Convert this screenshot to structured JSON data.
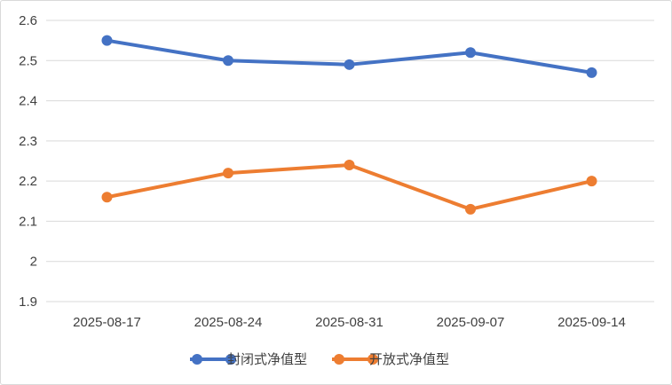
{
  "chart_data": {
    "type": "line",
    "categories": [
      "2025-08-17",
      "2025-08-24",
      "2025-08-31",
      "2025-09-07",
      "2025-09-14"
    ],
    "series": [
      {
        "name": "封闭式净值型",
        "values": [
          2.55,
          2.5,
          2.49,
          2.52,
          2.47
        ],
        "color": "#4472c4"
      },
      {
        "name": "开放式净值型",
        "values": [
          2.16,
          2.22,
          2.24,
          2.13,
          2.2
        ],
        "color": "#ed7d31"
      }
    ],
    "y_ticks": [
      "1.9",
      "2",
      "2.1",
      "2.2",
      "2.3",
      "2.4",
      "2.5",
      "2.6"
    ],
    "ylim": [
      1.9,
      2.6
    ],
    "grid": true,
    "legend_position": "bottom",
    "gridline_color": "#d9d9d9"
  }
}
